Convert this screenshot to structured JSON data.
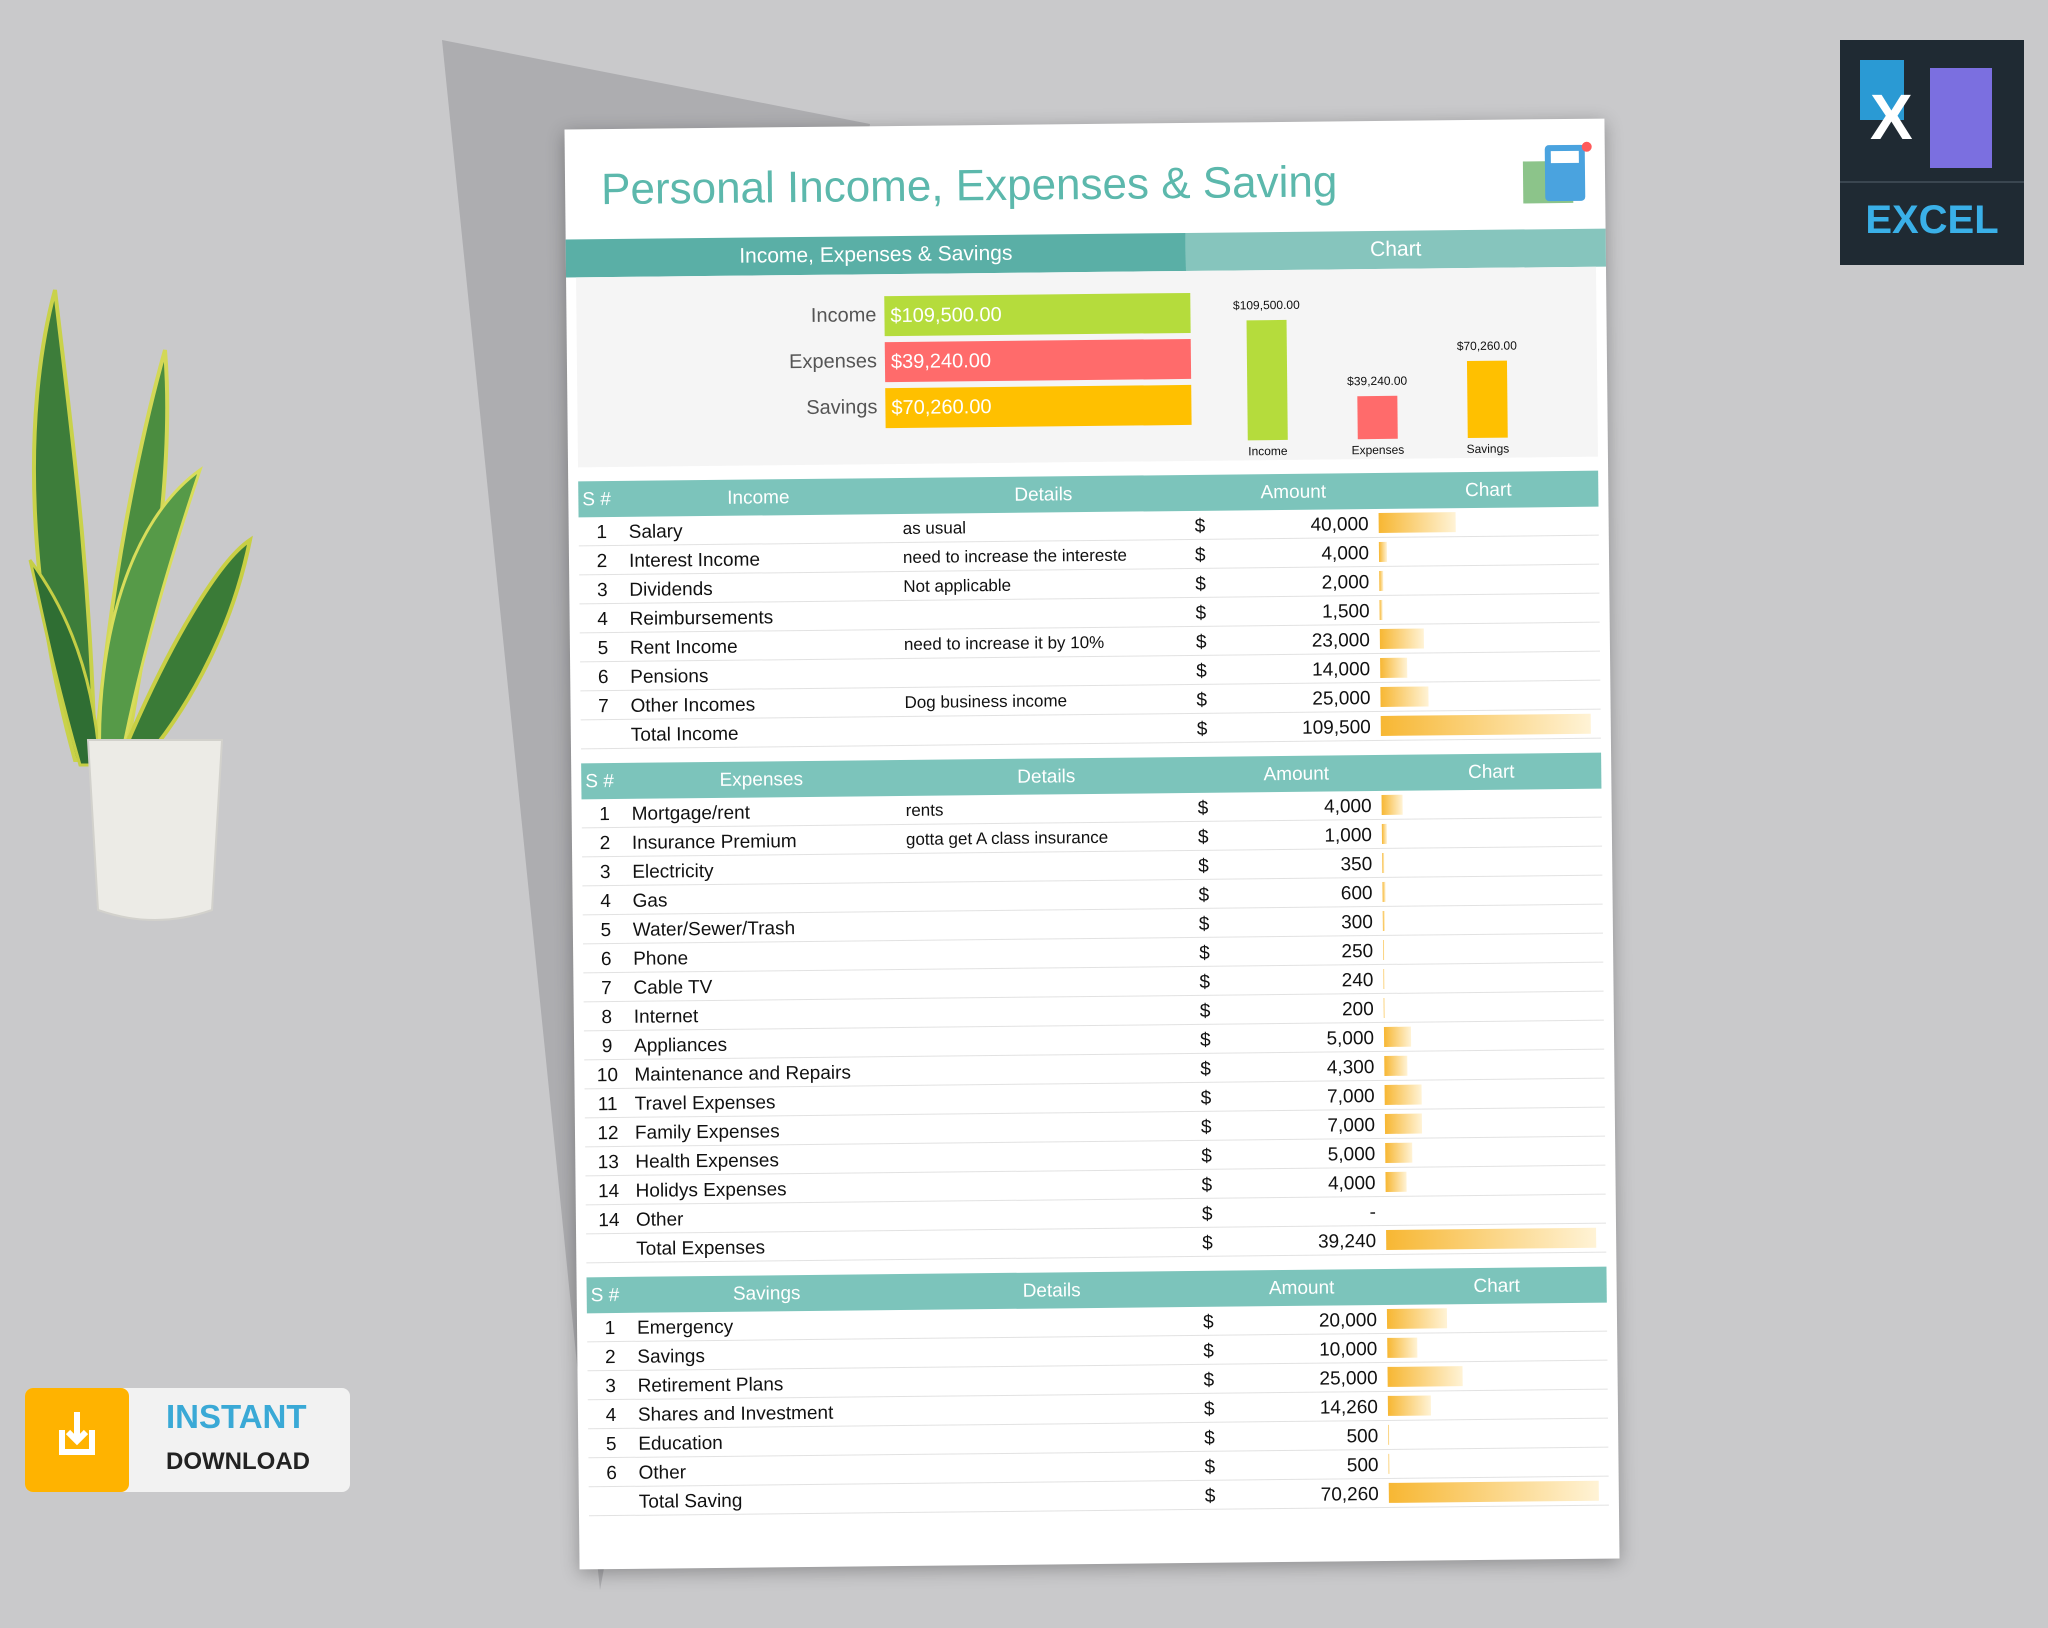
{
  "header": {
    "title": "Personal Income, Expenses & Saving"
  },
  "summary": {
    "band_title": "Income, Expenses & Savings",
    "chart_title": "Chart",
    "items": [
      {
        "label": "Income",
        "value": 109500,
        "value_label": "$109,500.00",
        "color": "#b5dc3c"
      },
      {
        "label": "Expenses",
        "value": 39240,
        "value_label": "$39,240.00",
        "color": "#ff6b6b"
      },
      {
        "label": "Savings",
        "value": 70260,
        "value_label": "$70,260.00",
        "color": "#ffc000"
      }
    ]
  },
  "currency": "$",
  "tables": [
    {
      "number_header": "S #",
      "title": "Income",
      "details_header": "Details",
      "amount_header": "Amount",
      "chart_header": "Chart",
      "rows": [
        {
          "number": 1,
          "name": "Salary",
          "details": "as usual",
          "amount": {
            "value": 40000,
            "label": "40,000"
          }
        },
        {
          "number": 2,
          "name": "Interest Income",
          "details": "need to increase the intereste",
          "amount": {
            "value": 4000,
            "label": "4,000"
          }
        },
        {
          "number": 3,
          "name": "Dividends",
          "details": "Not applicable",
          "amount": {
            "value": 2000,
            "label": "2,000"
          }
        },
        {
          "number": 4,
          "name": "Reimbursements",
          "details": null,
          "amount": {
            "value": 1500,
            "label": "1,500"
          }
        },
        {
          "number": 5,
          "name": "Rent Income",
          "details": "need to increase it by 10%",
          "amount": {
            "value": 23000,
            "label": "23,000"
          }
        },
        {
          "number": 6,
          "name": "Pensions",
          "details": null,
          "amount": {
            "value": 14000,
            "label": "14,000"
          }
        },
        {
          "number": 7,
          "name": "Other Incomes",
          "details": "Dog business income",
          "amount": {
            "value": 25000,
            "label": "25,000"
          }
        }
      ],
      "total": {
        "name": "Total Income",
        "amount": {
          "value": 109500,
          "label": "109,500"
        }
      }
    },
    {
      "number_header": "S #",
      "title": "Expenses",
      "details_header": "Details",
      "amount_header": "Amount",
      "chart_header": "Chart",
      "rows": [
        {
          "number": 1,
          "name": "Mortgage/rent",
          "details": "rents",
          "amount": {
            "value": 4000,
            "label": "4,000"
          }
        },
        {
          "number": 2,
          "name": "Insurance Premium",
          "details": "gotta get A class insurance",
          "amount": {
            "value": 1000,
            "label": "1,000"
          }
        },
        {
          "number": 3,
          "name": "Electricity",
          "details": null,
          "amount": 350
        },
        {
          "number": 4,
          "name": "Gas",
          "details": null,
          "amount": 600
        },
        {
          "number": 5,
          "name": "Water/Sewer/Trash",
          "details": null,
          "amount": 300
        },
        {
          "number": 6,
          "name": "Phone",
          "details": null,
          "amount": 250
        },
        {
          "number": 7,
          "name": "Cable TV",
          "details": null,
          "amount": 240
        },
        {
          "number": 8,
          "name": "Internet",
          "details": null,
          "amount": 200
        },
        {
          "number": 9,
          "name": "Appliances",
          "details": null,
          "amount": {
            "value": 5000,
            "label": "5,000"
          }
        },
        {
          "number": 10,
          "name": "Maintenance and Repairs",
          "details": null,
          "amount": {
            "value": 4300,
            "label": "4,300"
          }
        },
        {
          "number": 11,
          "name": "Travel Expenses",
          "details": null,
          "amount": {
            "value": 7000,
            "label": "7,000"
          }
        },
        {
          "number": 12,
          "name": "Family Expenses",
          "details": null,
          "amount": {
            "value": 7000,
            "label": "7,000"
          }
        },
        {
          "number": 13,
          "name": "Health Expenses",
          "details": null,
          "amount": {
            "value": 5000,
            "label": "5,000"
          }
        },
        {
          "number": 14,
          "name": "Holidys Expenses",
          "details": null,
          "amount": {
            "value": 4000,
            "label": "4,000"
          }
        },
        {
          "number": 14,
          "name": "Other",
          "details": null,
          "amount": {
            "value": 0,
            "label": "-"
          }
        }
      ],
      "total": {
        "name": "Total Expenses",
        "amount": {
          "value": 39240,
          "label": "39,240"
        }
      }
    },
    {
      "number_header": "S #",
      "title": "Savings",
      "details_header": "Details",
      "amount_header": "Amount",
      "chart_header": "Chart",
      "rows": [
        {
          "number": 1,
          "name": "Emergency",
          "details": null,
          "amount": {
            "value": 20000,
            "label": "20,000"
          }
        },
        {
          "number": 2,
          "name": "Savings",
          "details": null,
          "amount": {
            "value": 10000,
            "label": "10,000"
          }
        },
        {
          "number": 3,
          "name": "Retirement Plans",
          "details": null,
          "amount": {
            "value": 25000,
            "label": "25,000"
          }
        },
        {
          "number": 4,
          "name": "Shares and Investment",
          "details": null,
          "amount": {
            "value": 14260,
            "label": "14,260"
          }
        },
        {
          "number": 5,
          "name": "Education",
          "details": null,
          "amount": 500
        },
        {
          "number": 6,
          "name": "Other",
          "details": null,
          "amount": 500
        }
      ],
      "total": {
        "name": "Total Saving",
        "amount": {
          "value": 70260,
          "label": "70,260"
        }
      }
    }
  ],
  "badges": {
    "excel_logo": "X",
    "excel_label": "EXCEL",
    "download_line1": "INSTANT",
    "download_line2": "DOWNLOAD"
  }
}
